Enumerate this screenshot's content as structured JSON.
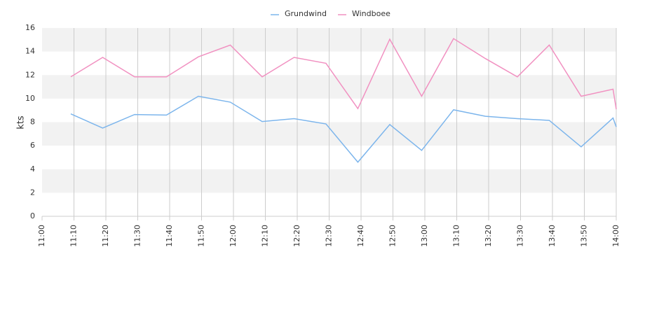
{
  "chart_data": {
    "type": "line",
    "y_label": "kts",
    "x": [
      "11:09",
      "11:19",
      "11:29",
      "11:39",
      "11:49",
      "11:59",
      "12:09",
      "12:19",
      "12:29",
      "12:39",
      "12:49",
      "12:59",
      "13:09",
      "13:19",
      "13:29",
      "13:39",
      "13:49",
      "13:59",
      "14:00"
    ],
    "series": [
      {
        "name": "Grundwind",
        "color": "#7cb5ec",
        "values": [
          8.7,
          7.5,
          8.65,
          8.6,
          10.2,
          9.7,
          8.05,
          8.3,
          7.85,
          4.6,
          7.8,
          5.6,
          9.05,
          8.5,
          8.3,
          8.15,
          5.9,
          8.35,
          7.6
        ]
      },
      {
        "name": "Windboee",
        "color": "#f191c1",
        "values": [
          11.85,
          13.5,
          11.85,
          11.85,
          13.55,
          14.55,
          11.85,
          13.5,
          13.0,
          9.15,
          15.05,
          10.2,
          15.1,
          13.4,
          11.85,
          14.55,
          10.2,
          10.8,
          9.1
        ]
      }
    ],
    "xlim": [
      "11:00",
      "14:00"
    ],
    "xticks": [
      "11:00",
      "11:10",
      "11:20",
      "11:30",
      "11:40",
      "11:50",
      "12:00",
      "12:10",
      "12:20",
      "12:30",
      "12:40",
      "12:50",
      "13:00",
      "13:10",
      "13:20",
      "13:30",
      "13:40",
      "13:50",
      "14:00"
    ],
    "ylim": [
      0,
      16
    ],
    "yticks": [
      0,
      2,
      4,
      6,
      8,
      10,
      12,
      14,
      16
    ],
    "grid": true,
    "alternate_bands": "#f2f2f2",
    "legend": "top"
  }
}
